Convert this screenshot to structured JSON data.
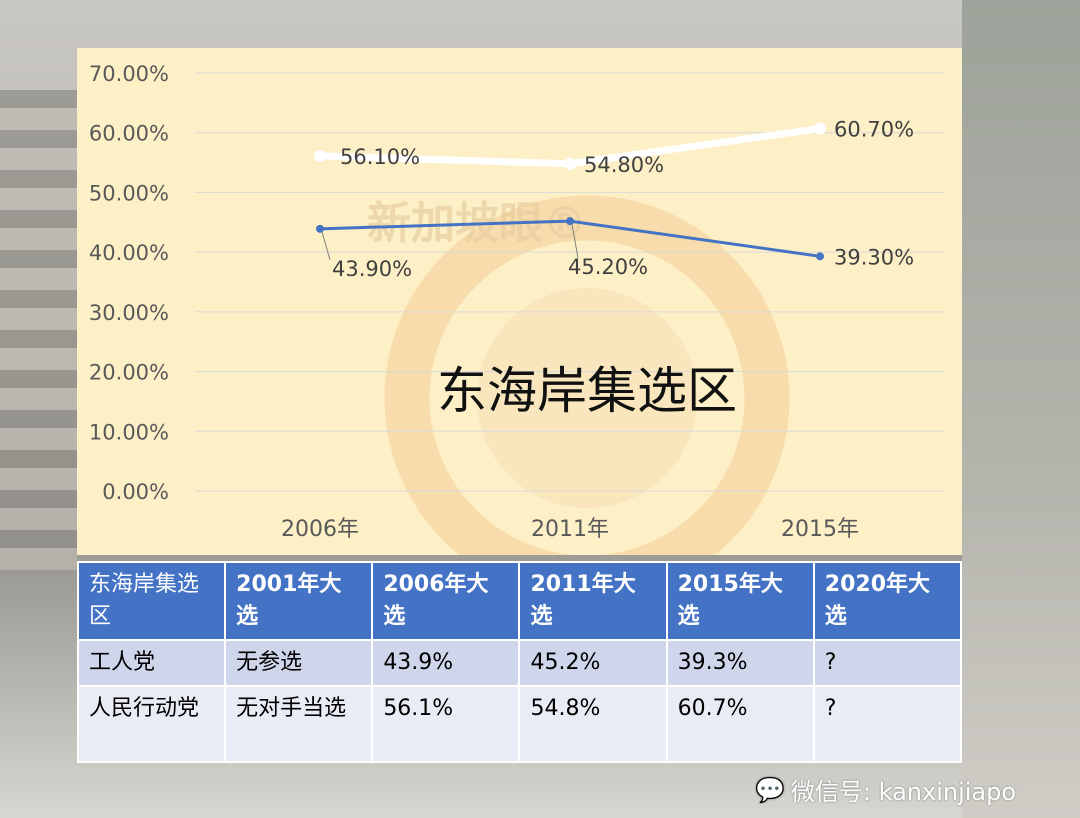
{
  "chart_data": {
    "type": "line",
    "title": "东海岸集选区",
    "categories": [
      "2006年",
      "2011年",
      "2015年"
    ],
    "yticks": [
      "0.00%",
      "10.00%",
      "20.00%",
      "30.00%",
      "40.00%",
      "50.00%",
      "60.00%",
      "70.00%"
    ],
    "ylim": [
      0,
      70
    ],
    "series": [
      {
        "name": "人民行动党",
        "color": "#ffffff",
        "values": [
          56.1,
          54.8,
          60.7
        ],
        "labels": [
          "56.10%",
          "54.80%",
          "60.70%"
        ]
      },
      {
        "name": "工人党",
        "color": "#4472c4",
        "values": [
          43.9,
          45.2,
          39.3
        ],
        "labels": [
          "43.90%",
          "45.20%",
          "39.30%"
        ]
      }
    ],
    "watermark": "新加坡眼®"
  },
  "table": {
    "header": [
      "东海岸集选区",
      "2001年大选",
      "2006年大选",
      "2011年大选",
      "2015年大选",
      "2020年大选"
    ],
    "rows": [
      [
        "工人党",
        "无参选",
        "43.9%",
        "45.2%",
        "39.3%",
        "?"
      ],
      [
        "人民行动党",
        "无对手当选",
        "56.1%",
        "54.8%",
        "60.7%",
        "?"
      ]
    ]
  },
  "footer": {
    "wechat": "微信号: kanxinjiapo"
  }
}
